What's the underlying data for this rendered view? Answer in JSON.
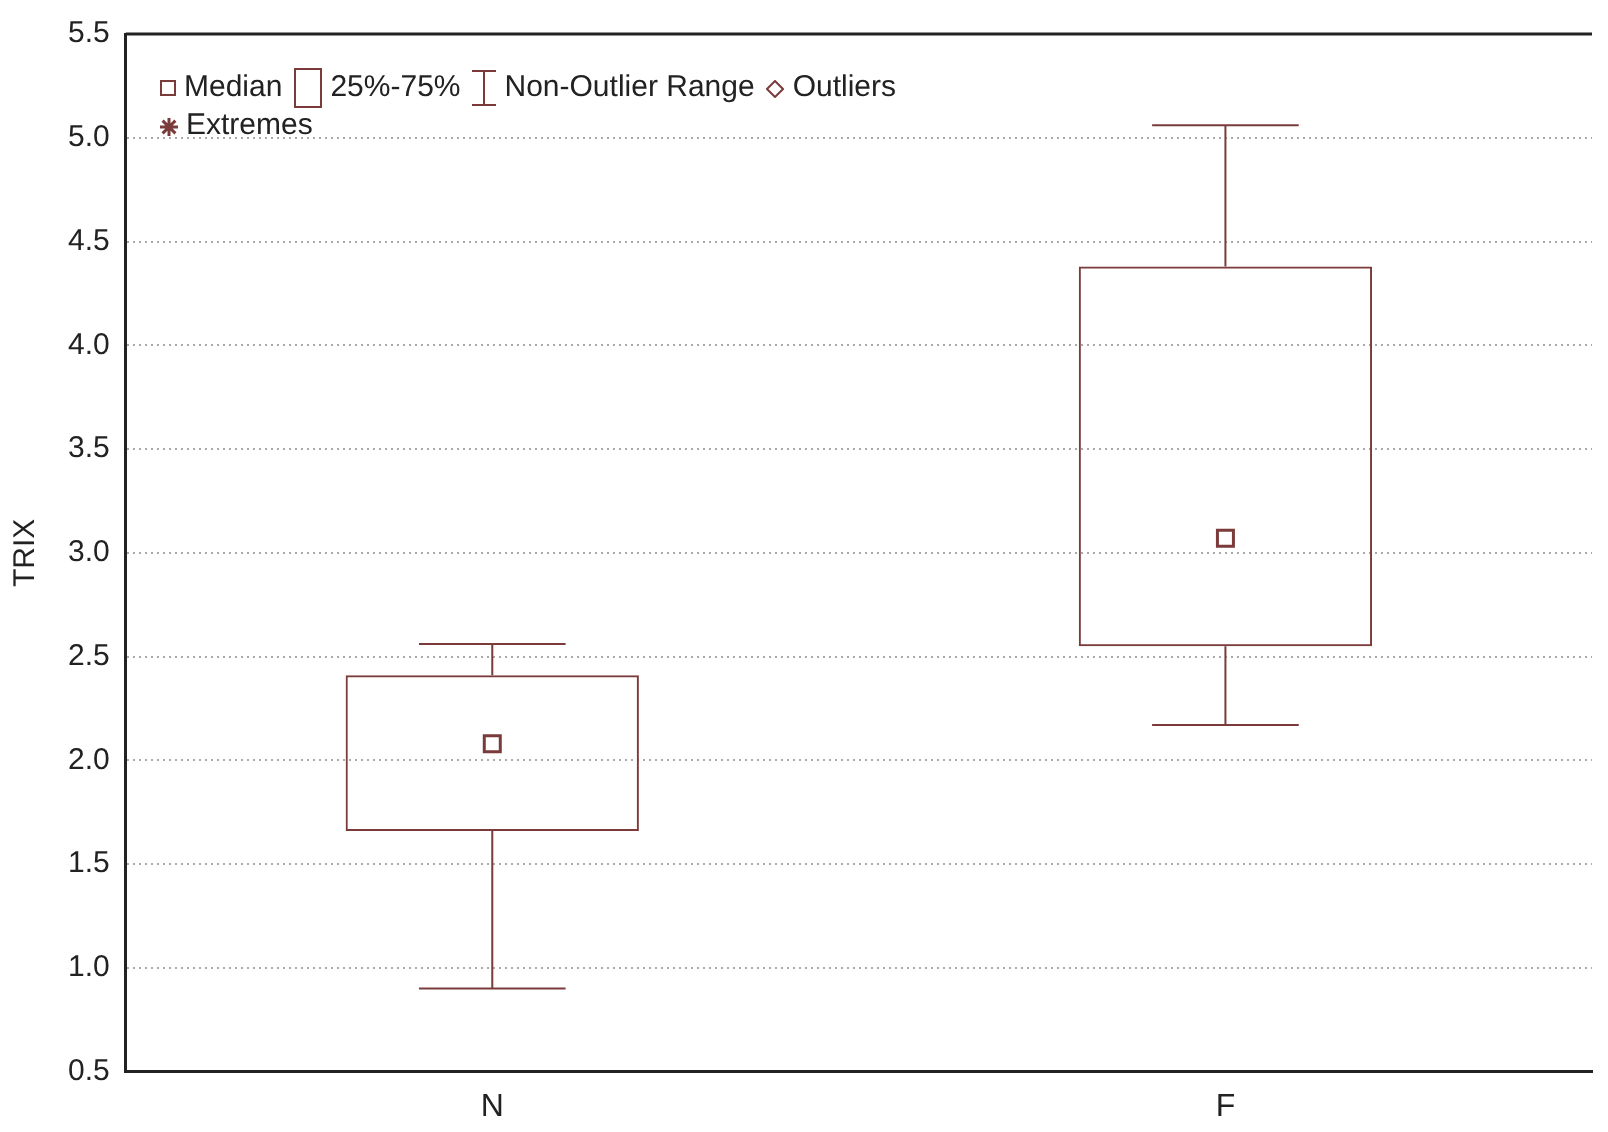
{
  "chart_data": {
    "type": "box",
    "ylabel": "TRIX",
    "categories": [
      "N",
      "F"
    ],
    "series": [
      {
        "color": "#7b3b3b",
        "boxes": [
          {
            "low": 0.9,
            "q1": 1.66,
            "median": 2.08,
            "q3": 2.41,
            "high": 2.56
          },
          {
            "low": 2.17,
            "q1": 2.55,
            "median": 3.07,
            "q3": 4.38,
            "high": 5.06
          }
        ]
      }
    ],
    "ylim": [
      0.5,
      5.5
    ],
    "yticks": [
      {
        "value": 0.5,
        "label": "0.5"
      },
      {
        "value": 1,
        "label": "1.0"
      },
      {
        "value": 1.5,
        "label": "1.5"
      },
      {
        "value": 2,
        "label": "2.0"
      },
      {
        "value": 2.5,
        "label": "2.5"
      },
      {
        "value": 3,
        "label": "3.0"
      },
      {
        "value": 3.5,
        "label": "3.5"
      },
      {
        "value": 4,
        "label": "4.0"
      },
      {
        "value": 4.5,
        "label": "4.5"
      },
      {
        "value": 5,
        "label": "5.0"
      },
      {
        "value": 5.5,
        "label": "5.5"
      }
    ],
    "grid": "y",
    "annotations": [
      "Median",
      "25%-75%",
      "Non-Outlier Range",
      "Outliers",
      "Extremes"
    ]
  }
}
